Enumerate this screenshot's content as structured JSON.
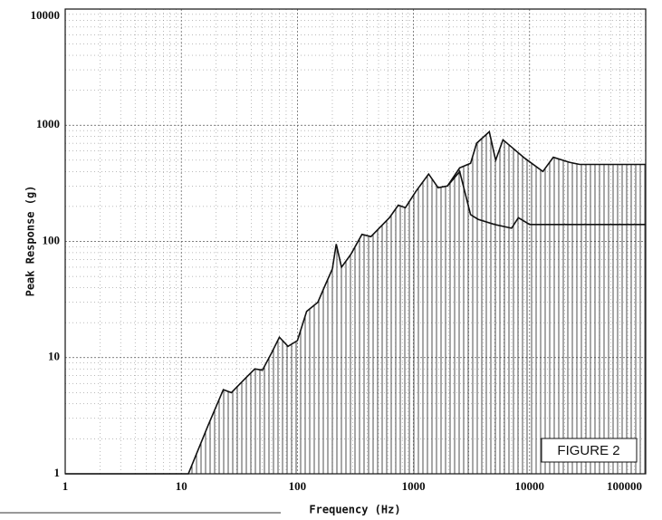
{
  "chart_data": {
    "type": "line",
    "x_label": "Frequency (Hz)",
    "y_label": "Peak Response (g)",
    "annotation": "FIGURE 2",
    "log_x": true,
    "log_y": true,
    "grid": true,
    "xlim": [
      1,
      100000
    ],
    "ylim": [
      1,
      10000
    ],
    "xticks": [
      1,
      10,
      100,
      1000,
      10000,
      100000
    ],
    "yticks": [
      1,
      10,
      100,
      1000,
      10000
    ],
    "series": [
      {
        "color": "#111111",
        "hatched": true,
        "x": [
          1,
          11.5,
          17,
          23,
          27,
          35,
          43,
          50,
          60,
          70,
          83,
          100,
          120,
          150,
          170,
          200,
          216,
          240,
          290,
          360,
          430,
          620,
          740,
          850,
          1050,
          1350,
          1630,
          1960,
          2500,
          3100,
          3500,
          4500,
          5100,
          5900,
          9100,
          13000,
          16000,
          22000,
          27000,
          100000
        ],
        "values": [
          1,
          1,
          2.6,
          5.3,
          5,
          6.5,
          8,
          7.8,
          11,
          15,
          12.5,
          14,
          25,
          30,
          40,
          58,
          95,
          60,
          78,
          115,
          110,
          160,
          205,
          195,
          270,
          380,
          290,
          300,
          430,
          470,
          700,
          880,
          500,
          750,
          520,
          400,
          530,
          480,
          460,
          460
        ]
      },
      {
        "color": "#111111",
        "hatched": false,
        "x": [
          1960,
          2500,
          3100,
          3600,
          5000,
          7000,
          8000,
          10000,
          100000
        ],
        "values": [
          300,
          400,
          170,
          155,
          140,
          130,
          160,
          140,
          140
        ]
      }
    ]
  }
}
